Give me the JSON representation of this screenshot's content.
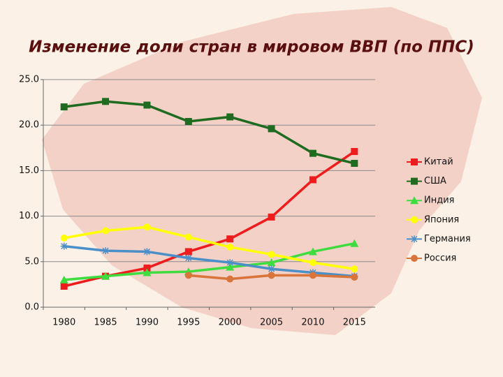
{
  "chart_data": {
    "type": "line",
    "title": "Изменение доли стран в мировом ВВП (по ППС)",
    "categories": [
      "1980",
      "1985",
      "1990",
      "1995",
      "2000",
      "2005",
      "2010",
      "2015"
    ],
    "ylim": [
      0,
      25
    ],
    "yticks": [
      {
        "value": 0,
        "label": "0.0"
      },
      {
        "value": 5,
        "label": "5.0"
      },
      {
        "value": 10,
        "label": "10.0"
      },
      {
        "value": 15,
        "label": "15.0"
      },
      {
        "value": 20,
        "label": "20.0"
      },
      {
        "value": 25,
        "label": "25.0"
      }
    ],
    "grid": true,
    "legend": "right",
    "series": [
      {
        "name": "Китай",
        "color": "#ee1c1c",
        "marker": "square",
        "values": [
          2.3,
          3.4,
          4.3,
          6.1,
          7.5,
          9.9,
          14.0,
          17.1
        ]
      },
      {
        "name": "США",
        "color": "#1f6b1f",
        "marker": "square",
        "values": [
          22.0,
          22.6,
          22.2,
          20.4,
          20.9,
          19.6,
          16.9,
          15.8
        ]
      },
      {
        "name": "Индия",
        "color": "#3fdc3f",
        "marker": "triangle",
        "values": [
          3.0,
          3.4,
          3.8,
          3.9,
          4.4,
          4.9,
          6.1,
          7.0
        ]
      },
      {
        "name": "Япония",
        "color": "#ffff00",
        "marker": "circle",
        "values": [
          7.6,
          8.4,
          8.8,
          7.7,
          6.6,
          5.8,
          4.9,
          4.2
        ]
      },
      {
        "name": "Германия",
        "color": "#4a8fc8",
        "marker": "star",
        "values": [
          6.7,
          6.2,
          6.1,
          5.4,
          4.9,
          4.2,
          3.8,
          3.4
        ]
      },
      {
        "name": "Россия",
        "color": "#d9743a",
        "marker": "circle",
        "values": [
          null,
          null,
          null,
          3.5,
          3.1,
          3.5,
          3.5,
          3.3
        ]
      }
    ]
  }
}
